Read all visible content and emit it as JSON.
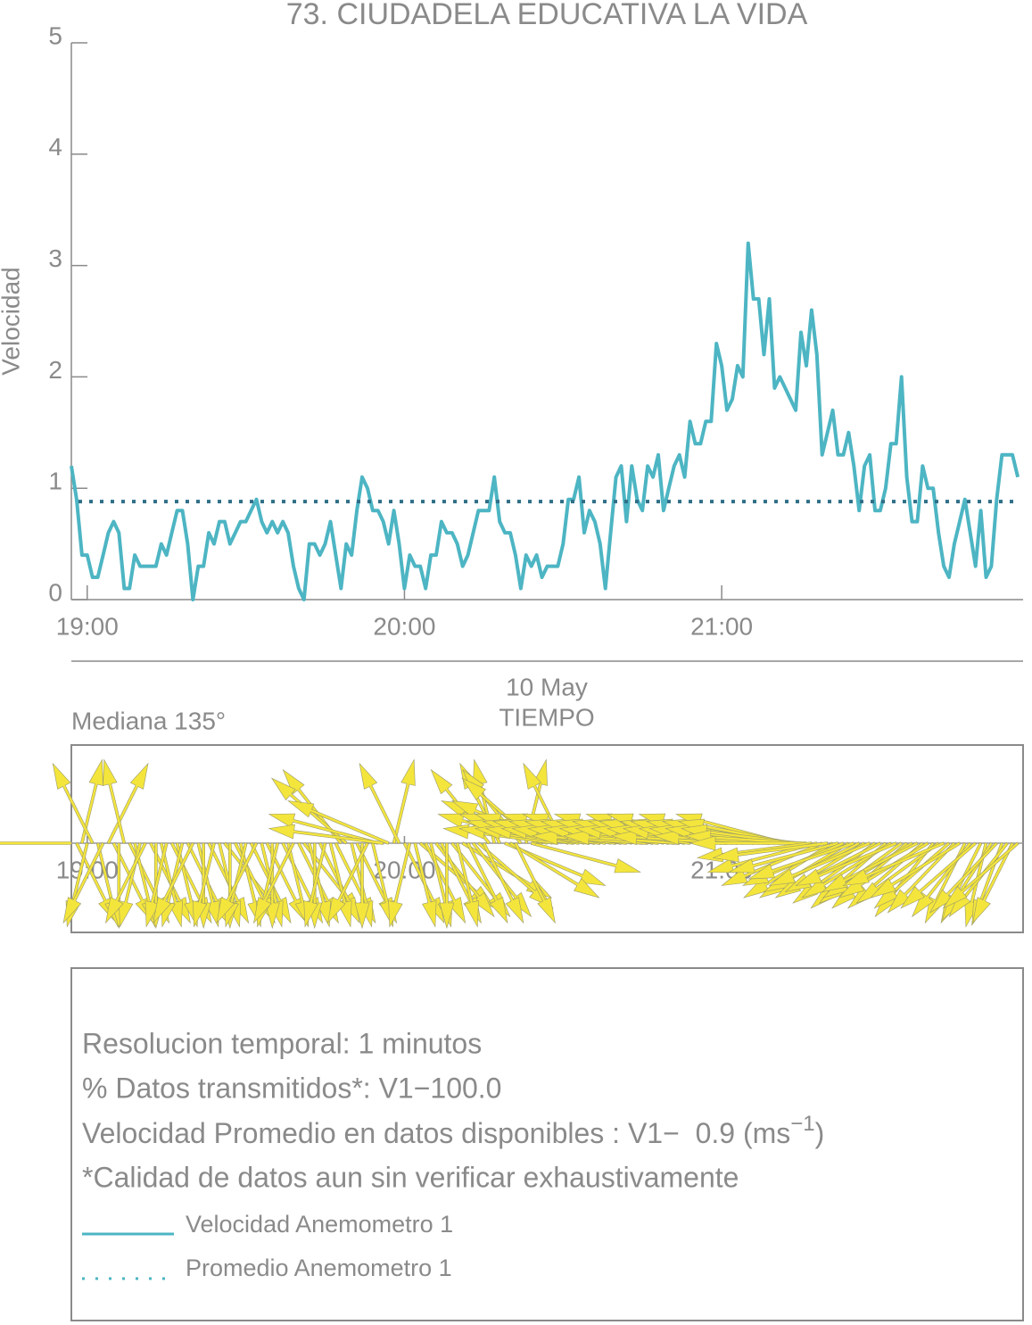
{
  "chart_data": [
    {
      "type": "line",
      "title": "73. CIUDADELA EDUCATIVA LA VIDA",
      "y_label": "Velocidad",
      "x_label": "TIEMPO",
      "date_label": "10 May",
      "xlim": [
        "18:57",
        "21:57"
      ],
      "xticks": [
        "19:00",
        "20:00",
        "21:00"
      ],
      "ylim": [
        0,
        5
      ],
      "yticks": [
        0,
        1,
        2,
        3,
        4,
        5
      ],
      "x": [
        "18:57",
        "18:58",
        "18:59",
        "19:00",
        "19:01",
        "19:02",
        "19:03",
        "19:04",
        "19:05",
        "19:06",
        "19:07",
        "19:08",
        "19:09",
        "19:10",
        "19:11",
        "19:12",
        "19:13",
        "19:14",
        "19:15",
        "19:16",
        "19:17",
        "19:18",
        "19:19",
        "19:20",
        "19:21",
        "19:22",
        "19:23",
        "19:24",
        "19:25",
        "19:26",
        "19:27",
        "19:28",
        "19:29",
        "19:30",
        "19:31",
        "19:32",
        "19:33",
        "19:34",
        "19:35",
        "19:36",
        "19:37",
        "19:38",
        "19:39",
        "19:40",
        "19:41",
        "19:42",
        "19:43",
        "19:44",
        "19:45",
        "19:46",
        "19:47",
        "19:48",
        "19:49",
        "19:50",
        "19:51",
        "19:52",
        "19:53",
        "19:54",
        "19:55",
        "19:56",
        "19:57",
        "19:58",
        "19:59",
        "20:00",
        "20:01",
        "20:02",
        "20:03",
        "20:04",
        "20:05",
        "20:06",
        "20:07",
        "20:08",
        "20:09",
        "20:10",
        "20:11",
        "20:12",
        "20:13",
        "20:14",
        "20:15",
        "20:16",
        "20:17",
        "20:18",
        "20:19",
        "20:20",
        "20:21",
        "20:22",
        "20:23",
        "20:24",
        "20:25",
        "20:26",
        "20:27",
        "20:28",
        "20:29",
        "20:30",
        "20:31",
        "20:32",
        "20:33",
        "20:34",
        "20:35",
        "20:36",
        "20:37",
        "20:38",
        "20:39",
        "20:40",
        "20:41",
        "20:42",
        "20:43",
        "20:44",
        "20:45",
        "20:46",
        "20:47",
        "20:48",
        "20:49",
        "20:50",
        "20:51",
        "20:52",
        "20:53",
        "20:54",
        "20:55",
        "20:56",
        "20:57",
        "20:58",
        "20:59",
        "21:00",
        "21:01",
        "21:02",
        "21:03",
        "21:04",
        "21:05",
        "21:06",
        "21:07",
        "21:08",
        "21:09",
        "21:10",
        "21:11",
        "21:12",
        "21:13",
        "21:14",
        "21:15",
        "21:16",
        "21:17",
        "21:18",
        "21:19",
        "21:20",
        "21:21",
        "21:22",
        "21:23",
        "21:24",
        "21:25",
        "21:26",
        "21:27",
        "21:28",
        "21:29",
        "21:30",
        "21:31",
        "21:32",
        "21:33",
        "21:34",
        "21:35",
        "21:36",
        "21:37",
        "21:38",
        "21:39",
        "21:40",
        "21:41",
        "21:42",
        "21:43",
        "21:44",
        "21:45",
        "21:46",
        "21:47",
        "21:48",
        "21:49",
        "21:50",
        "21:51",
        "21:52",
        "21:53",
        "21:54",
        "21:55",
        "21:56"
      ],
      "series": [
        {
          "name": "Velocidad Anemometro 1",
          "color": "#4db5c3",
          "values": [
            1.2,
            0.9,
            0.4,
            0.4,
            0.2,
            0.2,
            0.4,
            0.6,
            0.7,
            0.6,
            0.1,
            0.1,
            0.4,
            0.3,
            0.3,
            0.3,
            0.3,
            0.5,
            0.4,
            0.6,
            0.8,
            0.8,
            0.5,
            0.0,
            0.3,
            0.3,
            0.6,
            0.5,
            0.7,
            0.7,
            0.5,
            0.6,
            0.7,
            0.7,
            0.8,
            0.9,
            0.7,
            0.6,
            0.7,
            0.6,
            0.7,
            0.6,
            0.3,
            0.1,
            0.0,
            0.5,
            0.5,
            0.4,
            0.5,
            0.7,
            0.4,
            0.1,
            0.5,
            0.4,
            0.8,
            1.1,
            1.0,
            0.8,
            0.8,
            0.7,
            0.5,
            0.8,
            0.5,
            0.1,
            0.4,
            0.3,
            0.3,
            0.1,
            0.4,
            0.4,
            0.7,
            0.6,
            0.6,
            0.5,
            0.3,
            0.4,
            0.6,
            0.8,
            0.8,
            0.8,
            1.1,
            0.7,
            0.6,
            0.6,
            0.4,
            0.1,
            0.4,
            0.3,
            0.4,
            0.2,
            0.3,
            0.3,
            0.3,
            0.5,
            0.9,
            0.9,
            1.1,
            0.6,
            0.8,
            0.7,
            0.5,
            0.1,
            0.6,
            1.1,
            1.2,
            0.7,
            1.2,
            0.9,
            0.8,
            1.2,
            1.1,
            1.3,
            0.8,
            1.0,
            1.2,
            1.3,
            1.1,
            1.6,
            1.4,
            1.4,
            1.6,
            1.6,
            2.3,
            2.1,
            1.7,
            1.8,
            2.1,
            2.0,
            3.2,
            2.7,
            2.7,
            2.2,
            2.7,
            1.9,
            2.0,
            1.9,
            1.8,
            1.7,
            2.4,
            2.1,
            2.6,
            2.2,
            1.3,
            1.5,
            1.7,
            1.3,
            1.3,
            1.5,
            1.2,
            0.8,
            1.2,
            1.3,
            0.8,
            0.8,
            1.0,
            1.4,
            1.4,
            2.0,
            1.1,
            0.7,
            0.7,
            1.2,
            1.0,
            1.0,
            0.6,
            0.3,
            0.2,
            0.5,
            0.7,
            0.9,
            0.6,
            0.3,
            0.8,
            0.2,
            0.3,
            0.9,
            1.3,
            1.3,
            1.3,
            1.1
          ]
        },
        {
          "name": "Promedio Anemometro 1",
          "color": "#2f6f88",
          "value": 0.88
        }
      ]
    },
    {
      "type": "quiver",
      "title": "Mediana 135°",
      "color": "#f4e53c",
      "xlim": [
        "18:57",
        "21:57"
      ],
      "xticks": [
        "19:00",
        "20:00",
        "21:00"
      ],
      "directions": [
        90,
        200,
        350,
        170,
        20,
        190,
        160,
        340,
        200,
        180,
        10,
        200,
        190,
        170,
        160,
        200,
        180,
        190,
        170,
        200,
        190,
        170,
        200,
        160,
        190,
        180,
        200,
        170,
        190,
        210,
        180,
        200,
        190,
        170,
        200,
        160,
        190,
        200,
        180,
        170,
        200,
        190,
        160,
        200,
        210,
        190,
        180,
        200,
        170,
        190,
        200,
        30,
        40,
        190,
        200,
        180,
        160,
        190,
        70,
        80,
        60,
        350,
        20,
        200,
        170,
        190,
        220,
        200,
        190,
        210,
        200,
        180,
        210,
        190,
        230,
        200,
        210,
        220,
        200,
        30,
        10,
        20,
        240,
        230,
        200,
        30,
        350,
        250,
        40,
        60,
        70,
        60,
        80,
        20,
        70,
        80,
        75,
        70,
        80,
        75,
        80,
        75,
        70,
        80,
        75,
        80,
        70,
        75,
        80,
        85,
        75,
        80,
        70,
        75,
        80,
        85,
        75,
        80,
        70,
        75,
        80,
        75,
        70,
        80,
        85,
        75,
        80,
        75,
        70,
        80,
        75,
        80,
        85,
        75,
        80,
        70,
        75,
        80,
        85,
        90,
        100,
        110,
        120,
        100,
        130,
        110,
        120,
        130,
        115,
        125,
        130,
        120,
        135,
        125,
        140,
        130,
        120,
        135,
        140,
        130,
        125,
        140,
        130,
        150,
        135,
        120,
        140,
        145,
        130,
        160,
        150,
        140,
        160,
        170,
        155,
        145,
        165,
        150,
        160,
        140
      ]
    }
  ],
  "info": {
    "lines": [
      "Resolucion temporal: 1 minutos",
      "% Datos transmitidos*: V1−100.0"
    ],
    "mean_line": {
      "text": "Velocidad Promedio en datos disponibles : V1−  0.9 (ms",
      "sup": "−1",
      "end": ")"
    },
    "note": "*Calidad de datos aun sin verificar exhaustivamente"
  }
}
